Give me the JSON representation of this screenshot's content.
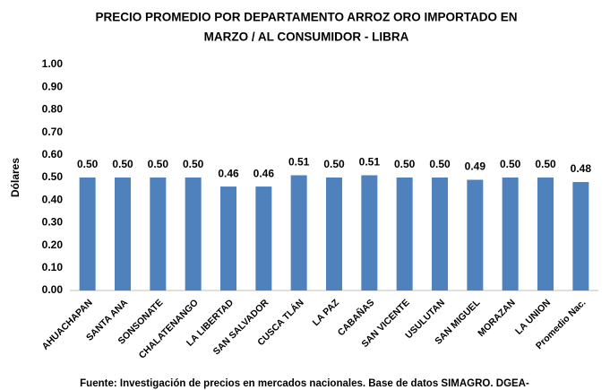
{
  "chart_data": {
    "type": "bar",
    "title": [
      "PRECIO PROMEDIO POR DEPARTAMENTO ARROZ ORO IMPORTADO EN",
      "MARZO / AL CONSUMIDOR - LIBRA"
    ],
    "y_label": "Dólares",
    "categories": [
      "AHUACHAPAN",
      "SANTA ANA",
      "SONSONATE",
      "CHALATENANGO",
      "LA LIBERTAD",
      "SAN SALVADOR",
      "CUSCA TLÁN",
      "LA PAZ",
      "CABAÑAS",
      "SAN VICENTE",
      "USULUTAN",
      "SAN MIGUEL",
      "MORAZAN",
      "LA UNION",
      "Promedio Nac."
    ],
    "values": [
      0.5,
      0.5,
      0.5,
      0.5,
      0.46,
      0.46,
      0.51,
      0.5,
      0.51,
      0.5,
      0.5,
      0.49,
      0.5,
      0.5,
      0.48
    ],
    "value_labels": [
      "0.50",
      "0.50",
      "0.50",
      "0.50",
      "0.46",
      "0.46",
      "0.51",
      "0.50",
      "0.51",
      "0.50",
      "0.50",
      "0.49",
      "0.50",
      "0.50",
      "0.48"
    ],
    "color": "#4f81bd",
    "ylim": [
      0,
      1
    ],
    "yticks": [
      {
        "value": 0,
        "label": "0.00"
      },
      {
        "value": 0.1,
        "label": "0.10"
      },
      {
        "value": 0.2,
        "label": "0.20"
      },
      {
        "value": 0.3,
        "label": "0.30"
      },
      {
        "value": 0.4,
        "label": "0.40"
      },
      {
        "value": 0.5,
        "label": "0.50"
      },
      {
        "value": 0.6,
        "label": "0.60"
      },
      {
        "value": 0.7,
        "label": "0.70"
      },
      {
        "value": 0.8,
        "label": "0.80"
      },
      {
        "value": 0.9,
        "label": "0.90"
      },
      {
        "value": 1,
        "label": "1.00"
      }
    ],
    "grid": false,
    "footer": "Fuente: Investigación de precios en mercados nacionales. Base de datos SIMAGRO. DGEA-"
  }
}
